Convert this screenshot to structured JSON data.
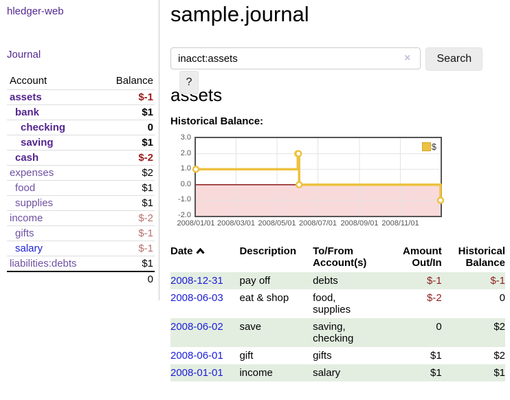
{
  "app_title": "hledger-web",
  "sidebar": {
    "journal_link": "Journal",
    "account_header": "Account",
    "balance_header": "Balance",
    "accounts": [
      {
        "name": "assets",
        "balance": "$-1",
        "level": 1,
        "bold": true,
        "negative": true
      },
      {
        "name": "bank",
        "balance": "$1",
        "level": 2,
        "bold": true,
        "negative": false
      },
      {
        "name": "checking",
        "balance": "0",
        "level": 3,
        "bold": true,
        "negative": false
      },
      {
        "name": "saving",
        "balance": "$1",
        "level": 3,
        "bold": true,
        "negative": false
      },
      {
        "name": "cash",
        "balance": "$-2",
        "level": 2,
        "bold": true,
        "negative": true
      },
      {
        "name": "expenses",
        "balance": "$2",
        "level": 1,
        "bold": false,
        "negative": false
      },
      {
        "name": "food",
        "balance": "$1",
        "level": 2,
        "bold": false,
        "negative": false
      },
      {
        "name": "supplies",
        "balance": "$1",
        "level": 2,
        "bold": false,
        "negative": false
      },
      {
        "name": "income",
        "balance": "$-2",
        "level": 1,
        "bold": false,
        "negative": true
      },
      {
        "name": "gifts",
        "balance": "$-1",
        "level": 2,
        "bold": false,
        "negative": true
      },
      {
        "name": "salary",
        "balance": "$-1",
        "level": 2,
        "bold": false,
        "negative": true,
        "unvisited": true
      },
      {
        "name": "liabilities:debts",
        "balance": "$1",
        "level": 1,
        "bold": false,
        "negative": false
      }
    ],
    "total": "0"
  },
  "main": {
    "title": "sample.journal",
    "search": {
      "value": "inacct:assets",
      "clear_icon": "×",
      "search_button": "Search",
      "help_button": "?"
    },
    "account_heading": "assets",
    "chart_label": "Historical Balance:"
  },
  "chart_data": {
    "type": "line",
    "title": "Historical Balance",
    "step": true,
    "xlim": [
      "2008-01-01",
      "2008-12-31"
    ],
    "ylim": [
      -2,
      3
    ],
    "x_ticks": [
      {
        "date": "2008-01-01",
        "label": "2008/01/01"
      },
      {
        "date": "2008-03-01",
        "label": "2008/03/01"
      },
      {
        "date": "2008-05-01",
        "label": "2008/05/01"
      },
      {
        "date": "2008-07-01",
        "label": "2008/07/01"
      },
      {
        "date": "2008-09-01",
        "label": "2008/09/01"
      },
      {
        "date": "2008-11-01",
        "label": "2008/11/01"
      }
    ],
    "y_ticks": [
      3.0,
      2.0,
      1.0,
      0.0,
      -1.0,
      -2.0
    ],
    "series": [
      {
        "name": "$",
        "color": "#edc240",
        "points": [
          {
            "x": "2008-01-01",
            "y": 1
          },
          {
            "x": "2008-06-01",
            "y": 2
          },
          {
            "x": "2008-06-02",
            "y": 2
          },
          {
            "x": "2008-06-03",
            "y": 0
          },
          {
            "x": "2008-12-31",
            "y": -1
          }
        ]
      }
    ],
    "legend": {
      "label": "$",
      "position": "top-right"
    },
    "grid_color": "#e3e3e3",
    "border_color": "#545454",
    "zero_line_color": "#8b1a1a",
    "negative_region_color": "#f9dada"
  },
  "register": {
    "headers": {
      "date": "Date",
      "description": "Description",
      "accounts": "To/From Account(s)",
      "amount": "Amount Out/In",
      "balance": "Historical Balance"
    },
    "rows": [
      {
        "date": "2008-12-31",
        "description": "pay off",
        "accounts": "debts",
        "amount": "$-1",
        "balance": "$-1"
      },
      {
        "date": "2008-06-03",
        "description": "eat & shop",
        "accounts": "food, supplies",
        "amount": "$-2",
        "balance": "0"
      },
      {
        "date": "2008-06-02",
        "description": "save",
        "accounts": "saving, checking",
        "amount": "0",
        "balance": "$2"
      },
      {
        "date": "2008-06-01",
        "description": "gift",
        "accounts": "gifts",
        "amount": "$1",
        "balance": "$2"
      },
      {
        "date": "2008-01-01",
        "description": "income",
        "accounts": "salary",
        "amount": "$1",
        "balance": "$1"
      }
    ]
  }
}
